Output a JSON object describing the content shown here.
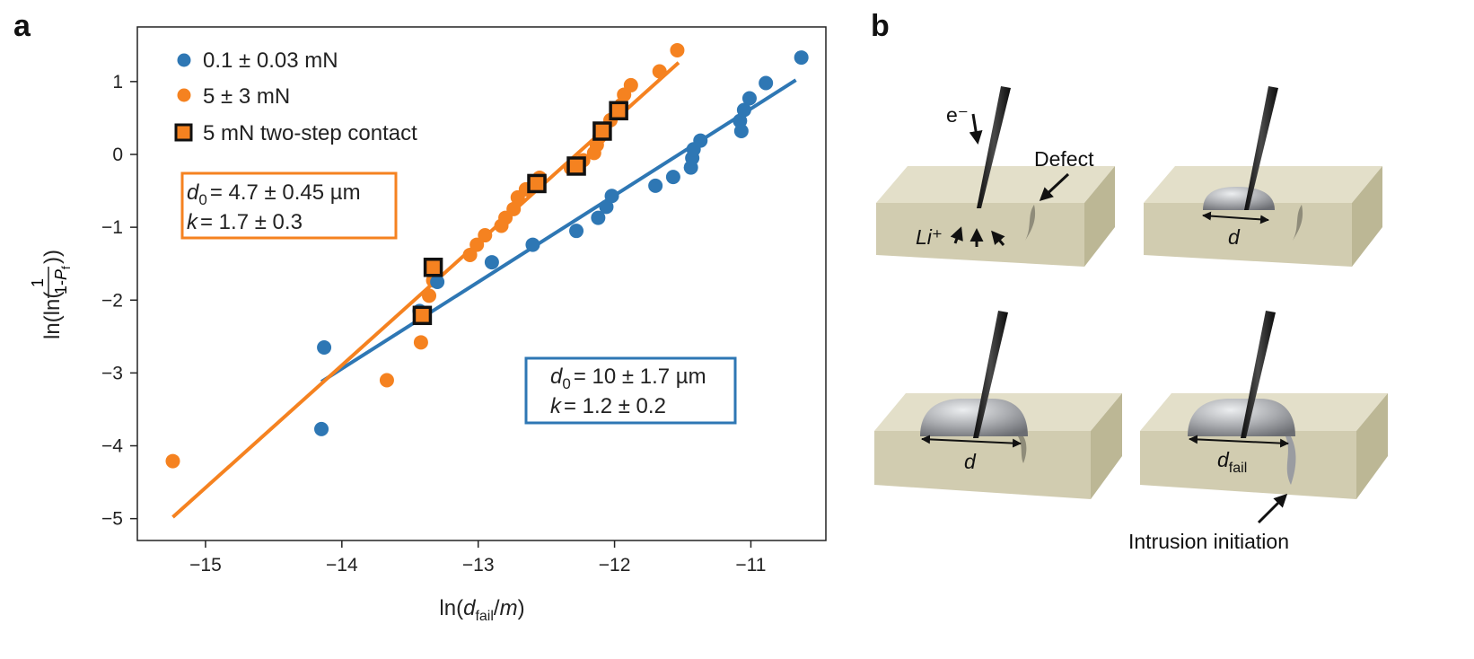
{
  "panel_a": {
    "label": "a",
    "chart_data": {
      "type": "scatter",
      "xlabel": "ln(d_fail/m)",
      "ylabel": "ln(ln(1/(1-P_f)))",
      "xlim": [
        -15.5,
        -10.45
      ],
      "ylim": [
        -5.3,
        1.75
      ],
      "x_ticks": [
        -15,
        -14,
        -13,
        -12,
        -11
      ],
      "y_ticks": [
        1,
        0,
        -1,
        -2,
        -3,
        -4,
        -5
      ],
      "x_tick_labels": [
        "−15",
        "−14",
        "−13",
        "−12",
        "−11"
      ],
      "y_tick_labels": [
        "1",
        "0",
        "−1",
        "−2",
        "−3",
        "−4",
        "−5"
      ],
      "legend_placement": "top-left",
      "series": [
        {
          "name": "0.1 ± 0.03 mN",
          "marker": "circle",
          "color": "#2e77b4",
          "points": [
            [
              -14.13,
              -2.65
            ],
            [
              -14.15,
              -3.77
            ],
            [
              -13.43,
              -2.15
            ],
            [
              -13.3,
              -1.75
            ],
            [
              -12.9,
              -1.48
            ],
            [
              -12.6,
              -1.24
            ],
            [
              -12.28,
              -1.05
            ],
            [
              -12.12,
              -0.87
            ],
            [
              -12.06,
              -0.72
            ],
            [
              -12.02,
              -0.57
            ],
            [
              -11.7,
              -0.43
            ],
            [
              -11.57,
              -0.31
            ],
            [
              -11.44,
              -0.18
            ],
            [
              -11.43,
              -0.05
            ],
            [
              -11.42,
              0.07
            ],
            [
              -11.37,
              0.19
            ],
            [
              -11.07,
              0.32
            ],
            [
              -11.08,
              0.46
            ],
            [
              -11.05,
              0.61
            ],
            [
              -11.01,
              0.77
            ],
            [
              -10.89,
              0.98
            ],
            [
              -10.63,
              1.33
            ]
          ],
          "fit": {
            "x": [
              -14.15,
              -10.67
            ],
            "y": [
              -3.12,
              1.02
            ]
          },
          "params": {
            "d0": "= 10 ± 1.7 µm",
            "k": "= 1.2 ± 0.2"
          }
        },
        {
          "name": "5 ± 3 mN",
          "marker": "circle",
          "color": "#f58220",
          "points": [
            [
              -15.24,
              -4.21
            ],
            [
              -13.67,
              -3.1
            ],
            [
              -13.42,
              -2.58
            ],
            [
              -13.36,
              -1.94
            ],
            [
              -13.33,
              -1.73
            ],
            [
              -13.32,
              -1.62
            ],
            [
              -13.06,
              -1.38
            ],
            [
              -13.01,
              -1.24
            ],
            [
              -12.95,
              -1.11
            ],
            [
              -12.83,
              -0.98
            ],
            [
              -12.8,
              -0.87
            ],
            [
              -12.74,
              -0.75
            ],
            [
              -12.71,
              -0.59
            ],
            [
              -12.65,
              -0.48
            ],
            [
              -12.55,
              -0.32
            ],
            [
              -12.32,
              -0.19
            ],
            [
              -12.23,
              -0.08
            ],
            [
              -12.15,
              0.02
            ],
            [
              -12.13,
              0.13
            ],
            [
              -12.11,
              0.24
            ],
            [
              -12.1,
              0.35
            ],
            [
              -12.03,
              0.47
            ],
            [
              -11.95,
              0.68
            ],
            [
              -11.93,
              0.82
            ],
            [
              -11.88,
              0.95
            ],
            [
              -11.67,
              1.14
            ],
            [
              -11.54,
              1.43
            ]
          ],
          "fit": {
            "x": [
              -15.24,
              -11.53
            ],
            "y": [
              -4.98,
              1.26
            ]
          },
          "params": {
            "d0": "= 4.7 ± 0.45 µm",
            "k": "= 1.7 ± 0.3"
          }
        },
        {
          "name": "5 mN two-step contact",
          "marker": "square",
          "color": "#f58220",
          "edge_color": "#111111",
          "points": [
            [
              -13.41,
              -2.21
            ],
            [
              -13.33,
              -1.55
            ],
            [
              -12.57,
              -0.4
            ],
            [
              -12.28,
              -0.16
            ],
            [
              -12.09,
              0.32
            ],
            [
              -11.97,
              0.6
            ]
          ]
        }
      ]
    }
  },
  "panel_b": {
    "label": "b",
    "labels": {
      "electron": "e⁻",
      "lithium_ion": "Li⁺",
      "defect": "Defect",
      "d": "d",
      "d_fail": "d",
      "d_fail_sub": "fail",
      "intrusion": "Intrusion initiation"
    },
    "colors": {
      "block_top": "#e3dfc9",
      "block_front": "#d1ccb0",
      "block_side": "#bcb795",
      "metal": "#a7a9ad"
    }
  }
}
